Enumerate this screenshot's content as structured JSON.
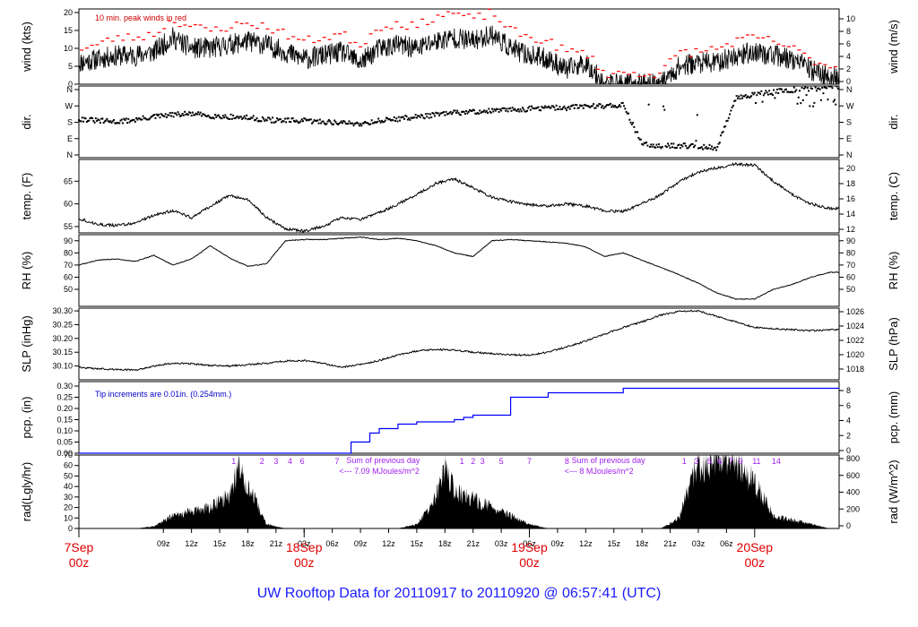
{
  "colors": {
    "trace": "#000000",
    "peak": "#ff0000",
    "precip": "#0000ff",
    "annot": "#a020f0",
    "day_label": "#e00000",
    "footer": "#1a1aff"
  },
  "footer": {
    "title": "UW Rooftop Data for 20110917  to  20110920 @ 06:57:41  (UTC)"
  },
  "x_axis": {
    "hour_ticks": [
      "09z",
      "12z",
      "15z",
      "18z",
      "21z",
      "03z",
      "06z",
      "09z",
      "12z",
      "15z",
      "18z",
      "21z",
      "03z",
      "06z",
      "09z",
      "12z",
      "15z",
      "18z",
      "21z",
      "03z",
      "06z"
    ],
    "day_labels": [
      {
        "date": "7Sep",
        "time": "00z",
        "hour": 0
      },
      {
        "date": "18Sep",
        "time": "00z",
        "hour": 24
      },
      {
        "date": "19Sep",
        "time": "00z",
        "hour": 48
      },
      {
        "date": "20Sep",
        "time": "00z",
        "hour": 72
      }
    ]
  },
  "chart_data": [
    {
      "type": "line",
      "panel": "wind",
      "ylabel_left": "wind (kts)",
      "ylabel_right": "wind (m/s)",
      "ylim": [
        0,
        21
      ],
      "left_ticks": [
        "0",
        "5",
        "10",
        "15",
        "20"
      ],
      "right_ticks": [
        "0",
        "2",
        "4",
        "6",
        "8",
        "10"
      ],
      "annotation": "10 min. peak winds in red",
      "series": [
        {
          "name": "wind",
          "x": [
            0,
            2,
            4,
            6,
            8,
            10,
            12,
            14,
            16,
            18,
            20,
            22,
            24,
            26,
            28,
            30,
            32,
            34,
            36,
            38,
            40,
            42,
            44,
            46,
            48,
            50,
            52,
            54,
            56,
            58,
            60,
            62,
            64,
            66,
            68,
            70,
            72,
            74,
            76,
            78,
            80
          ],
          "y": [
            6,
            7,
            8,
            8,
            9,
            13,
            10,
            10,
            11,
            12,
            11,
            9,
            7,
            8,
            9,
            6,
            10,
            11,
            10,
            12,
            13,
            12,
            14,
            10,
            8,
            7,
            4,
            6,
            0,
            0,
            0,
            0,
            5,
            6,
            6,
            8,
            9,
            8,
            7,
            4,
            2
          ]
        },
        {
          "name": "10 min. peak winds",
          "x": [
            0,
            2,
            4,
            6,
            8,
            10,
            12,
            14,
            16,
            18,
            20,
            22,
            24,
            26,
            28,
            30,
            32,
            34,
            36,
            38,
            40,
            42,
            44,
            46,
            48,
            50,
            52,
            54,
            56,
            58,
            60,
            62,
            64,
            66,
            68,
            70,
            72,
            74,
            76,
            78,
            80
          ],
          "y": [
            10,
            11,
            13,
            13,
            14,
            18,
            16,
            15,
            16,
            17,
            16,
            14,
            12,
            13,
            14,
            11,
            16,
            17,
            16,
            19,
            20,
            18,
            20,
            15,
            13,
            12,
            9,
            9,
            3,
            3,
            3,
            3,
            9,
            9,
            10,
            12,
            13,
            12,
            10,
            7,
            5
          ]
        }
      ]
    },
    {
      "type": "scatter",
      "panel": "dir.",
      "ylabel_left": "dir.",
      "ylabel_right": "dir.",
      "ylim": [
        0,
        360
      ],
      "left_ticks": [
        "N",
        "E",
        "S",
        "W",
        "N"
      ],
      "right_ticks": [
        "N",
        "E",
        "S",
        "W",
        "N"
      ],
      "series": [
        {
          "name": "dir",
          "x": [
            0,
            2,
            4,
            6,
            8,
            10,
            12,
            14,
            16,
            18,
            20,
            22,
            24,
            26,
            28,
            30,
            32,
            34,
            36,
            38,
            40,
            42,
            44,
            46,
            48,
            50,
            52,
            54,
            56,
            58,
            60,
            62,
            64,
            66,
            68,
            70,
            72,
            74,
            76,
            78,
            80
          ],
          "y": [
            195,
            185,
            180,
            190,
            205,
            215,
            220,
            210,
            205,
            200,
            190,
            185,
            185,
            180,
            175,
            170,
            185,
            195,
            205,
            215,
            225,
            230,
            235,
            240,
            245,
            250,
            250,
            260,
            260,
            265,
            70,
            60,
            60,
            55,
            50,
            300,
            320,
            330,
            340,
            345,
            350
          ]
        }
      ]
    },
    {
      "type": "line",
      "panel": "temp",
      "ylabel_left": "temp. (F)",
      "ylabel_right": "temp. (C)",
      "ylim": [
        53.6,
        69.8
      ],
      "left_ticks": [
        "55",
        "60",
        "65"
      ],
      "right_ticks": [
        "12",
        "14",
        "16",
        "18",
        "20"
      ],
      "series": [
        {
          "name": "temp",
          "x": [
            0,
            2,
            4,
            6,
            8,
            10,
            12,
            14,
            16,
            18,
            20,
            22,
            24,
            26,
            28,
            30,
            32,
            34,
            36,
            38,
            40,
            42,
            44,
            46,
            48,
            50,
            52,
            54,
            56,
            58,
            60,
            62,
            64,
            66,
            68,
            70,
            72,
            74,
            76,
            78,
            80
          ],
          "y": [
            56.8,
            55.5,
            55.2,
            55.8,
            57.5,
            58.5,
            57.0,
            59.5,
            61.8,
            61.0,
            57.0,
            54.5,
            54.0,
            55.0,
            57.0,
            56.5,
            58.0,
            60.0,
            62.0,
            64.5,
            65.5,
            63.5,
            61.5,
            60.5,
            59.8,
            59.5,
            60.0,
            59.5,
            58.5,
            58.3,
            60.0,
            62.0,
            65.0,
            67.0,
            68.0,
            68.8,
            68.5,
            65.0,
            62.0,
            60.0,
            59.0
          ]
        }
      ]
    },
    {
      "type": "line",
      "panel": "RH",
      "ylabel_left": "RH (%)",
      "ylabel_right": "RH (%)",
      "ylim": [
        36,
        95
      ],
      "left_ticks": [
        "50",
        "60",
        "70",
        "80",
        "90"
      ],
      "right_ticks": [
        "50",
        "60",
        "70",
        "80",
        "90"
      ],
      "series": [
        {
          "name": "RH",
          "x": [
            0,
            2,
            4,
            6,
            8,
            10,
            12,
            14,
            16,
            18,
            20,
            22,
            24,
            26,
            28,
            30,
            32,
            34,
            36,
            38,
            40,
            42,
            44,
            46,
            48,
            50,
            52,
            54,
            56,
            58,
            60,
            62,
            64,
            66,
            68,
            70,
            72,
            74,
            76,
            78,
            80
          ],
          "y": [
            70,
            74,
            75,
            73,
            78,
            70,
            75,
            86,
            76,
            69,
            71,
            90,
            91,
            91,
            92,
            93,
            91,
            92,
            90,
            86,
            80,
            77,
            90,
            91,
            90,
            89,
            88,
            85,
            77,
            80,
            74,
            68,
            62,
            55,
            47,
            42,
            42,
            50,
            54,
            60,
            64
          ]
        }
      ]
    },
    {
      "type": "line",
      "panel": "SLP",
      "ylabel_left": "SLP (inHg)",
      "ylabel_right": "SLP (hPa)",
      "ylim": [
        30.05,
        30.31
      ],
      "left_ticks": [
        "30.10",
        "30.15",
        "30.20",
        "30.25",
        "30.30"
      ],
      "right_ticks": [
        "1018",
        "1020",
        "1022",
        "1024",
        "1026"
      ],
      "series": [
        {
          "name": "SLP",
          "x": [
            0,
            2,
            4,
            6,
            8,
            10,
            12,
            14,
            16,
            18,
            20,
            22,
            24,
            26,
            28,
            30,
            32,
            34,
            36,
            38,
            40,
            42,
            44,
            46,
            48,
            50,
            52,
            54,
            56,
            58,
            60,
            62,
            64,
            66,
            68,
            70,
            72,
            74,
            76,
            78,
            80
          ],
          "y": [
            30.095,
            30.09,
            30.088,
            30.085,
            30.1,
            30.11,
            30.108,
            30.102,
            30.1,
            30.105,
            30.11,
            30.118,
            30.12,
            30.11,
            30.095,
            30.105,
            30.12,
            30.14,
            30.155,
            30.16,
            30.158,
            30.15,
            30.145,
            30.14,
            30.14,
            30.15,
            30.17,
            30.19,
            30.215,
            30.24,
            30.26,
            30.285,
            30.298,
            30.3,
            30.28,
            30.26,
            30.24,
            30.235,
            30.232,
            30.228,
            30.232
          ]
        }
      ]
    },
    {
      "type": "area",
      "panel": "pcp",
      "ylabel_left": "pcp. (in)",
      "ylabel_right": "pcp. (mm)",
      "ylim": [
        0,
        0.32
      ],
      "left_ticks": [
        "0.00",
        "0.05",
        "0.10",
        "0.15",
        "0.20",
        "0.25",
        "0.30"
      ],
      "right_ticks": [
        "0",
        "2",
        "4",
        "6",
        "8"
      ],
      "annotation": "Tip increments are 0.01in. (0.254mm.)",
      "series": [
        {
          "name": "pcp",
          "x": [
            0,
            27,
            29,
            31,
            32,
            34,
            36,
            38,
            40,
            41,
            42,
            44,
            46,
            50,
            54,
            56,
            57,
            58,
            60,
            70,
            80
          ],
          "y": [
            0.0,
            0.0,
            0.05,
            0.09,
            0.11,
            0.13,
            0.14,
            0.14,
            0.15,
            0.16,
            0.17,
            0.17,
            0.25,
            0.27,
            0.27,
            0.27,
            0.27,
            0.29,
            0.29,
            0.29,
            0.29
          ]
        }
      ]
    },
    {
      "type": "area",
      "panel": "rad",
      "ylabel_left": "rad(Lgly/hr)",
      "ylabel_right": "rad (W/m^2)",
      "ylim": [
        0,
        70
      ],
      "left_ticks": [
        "0",
        "10",
        "20",
        "30",
        "40",
        "50",
        "60",
        "70"
      ],
      "right_ticks": [
        "0",
        "200",
        "400",
        "600",
        "800"
      ],
      "series": [
        {
          "name": "rad",
          "x": [
            0,
            4,
            6,
            8,
            10,
            12,
            14,
            16,
            17,
            18,
            20,
            22,
            24,
            28,
            30,
            32,
            34,
            36,
            37,
            38,
            39,
            40,
            42,
            44,
            46,
            48,
            50,
            52,
            54,
            56,
            58,
            60,
            62,
            64,
            65,
            66,
            67,
            68,
            70,
            72,
            74,
            80
          ],
          "y": [
            0,
            0,
            0,
            2,
            12,
            16,
            20,
            32,
            58,
            40,
            4,
            0,
            0,
            0,
            0,
            0,
            0,
            4,
            15,
            28,
            60,
            35,
            28,
            20,
            12,
            4,
            0,
            0,
            0,
            0,
            0,
            0,
            0,
            10,
            40,
            62,
            55,
            70,
            60,
            45,
            12,
            0
          ]
        }
      ],
      "annotations": [
        {
          "text": "Sum of previous day",
          "line2": "<--- 7.09 MJoules/m^2"
        },
        {
          "text": "Sum of previous day",
          "line2": "<--- 8 MJoules/m^2"
        }
      ],
      "hour_markers": [
        {
          "labels": [
            "1",
            "2",
            "3",
            "4",
            "6",
            "7"
          ],
          "hours": [
            16.5,
            19.5,
            21,
            22.5,
            23.8,
            27.5
          ]
        },
        {
          "labels": [
            "1",
            "2",
            "3",
            "5",
            "7",
            "8"
          ],
          "hours": [
            40.8,
            42,
            43,
            45,
            48,
            52
          ]
        },
        {
          "labels": [
            "1",
            "3",
            "5",
            "6",
            "7",
            "9",
            "11",
            "14"
          ],
          "hours": [
            64.5,
            65.8,
            67.2,
            68.3,
            69.5,
            70.5,
            72.2,
            74.3
          ]
        }
      ]
    }
  ]
}
